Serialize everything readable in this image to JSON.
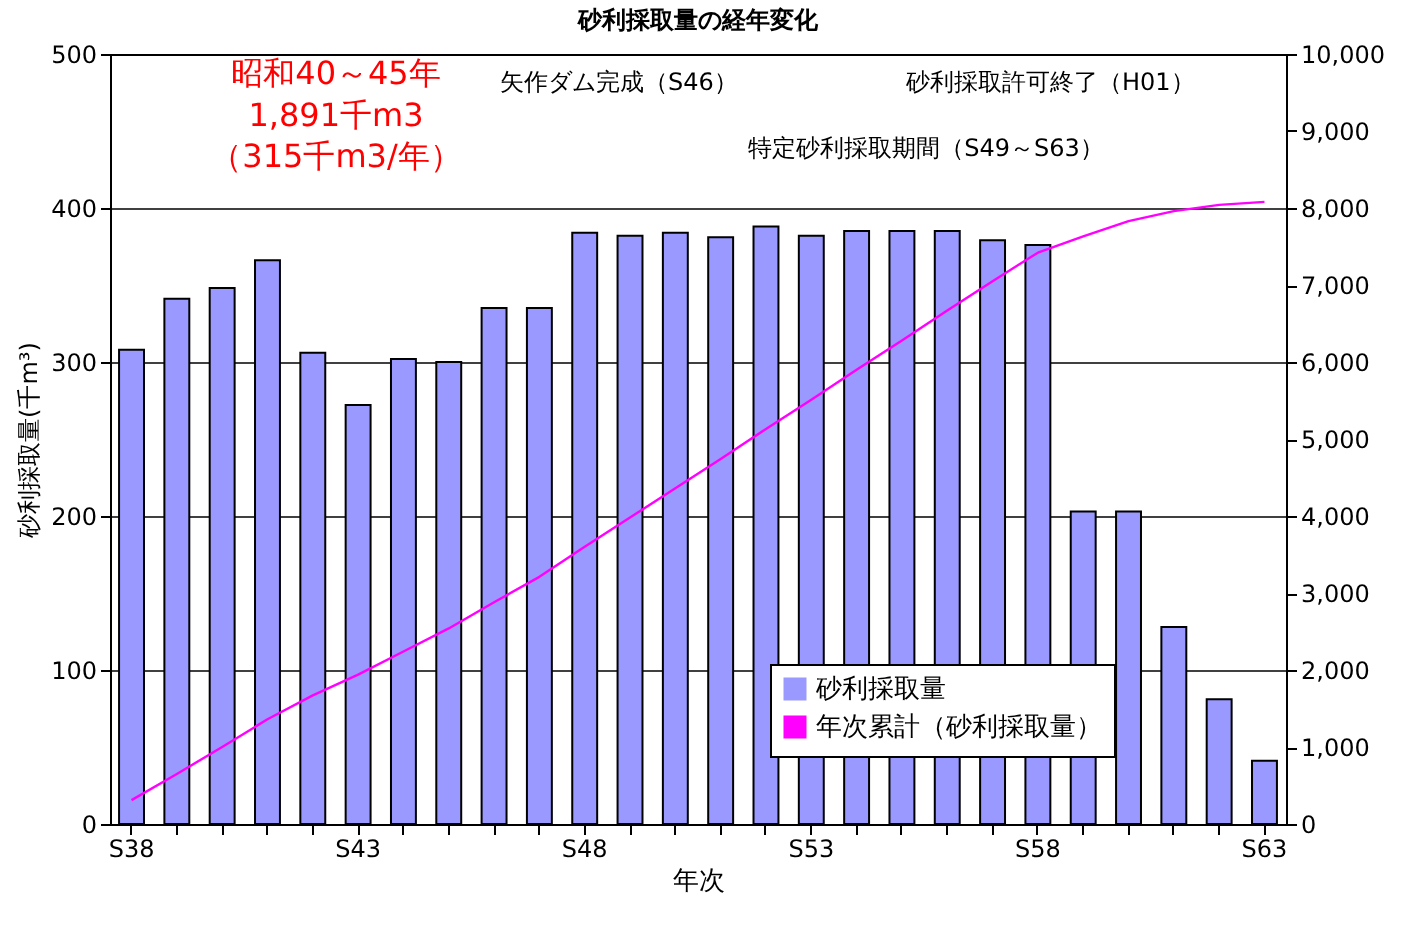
{
  "chart_data": {
    "type": "bar",
    "title": "砂利採取量の経年変化",
    "xlabel": "年次",
    "ylabel": "砂利採取量(千m³)",
    "categories": [
      "S38",
      null,
      null,
      null,
      null,
      "S43",
      null,
      null,
      null,
      null,
      "S48",
      null,
      null,
      null,
      null,
      "S53",
      null,
      null,
      null,
      null,
      "S58",
      null,
      null,
      null,
      null,
      "S63"
    ],
    "series": [
      {
        "name": "砂利採取量",
        "color": "#9999ff",
        "values": [
          308,
          341,
          348,
          366,
          306,
          272,
          302,
          300,
          335,
          335,
          384,
          382,
          384,
          381,
          388,
          382,
          385,
          385,
          385,
          379,
          376,
          203,
          203,
          128,
          81,
          41
        ]
      },
      {
        "name": "年次累計（砂利採取量）",
        "type": "line",
        "axis": "y2",
        "color": "#ff00ff",
        "values": [
          310,
          650,
          1000,
          1360,
          1670,
          1940,
          2240,
          2540,
          2880,
          3210,
          3600,
          3980,
          4360,
          4740,
          5130,
          5510,
          5900,
          6280,
          6670,
          7050,
          7420,
          7630,
          7830,
          7960,
          8040,
          8080
        ]
      }
    ],
    "ylim": [
      0,
      500
    ],
    "yticks": [
      0,
      100,
      200,
      300,
      400,
      500
    ],
    "y2lim": [
      0,
      10000
    ],
    "y2ticks": [
      0,
      {
        "value": 1000,
        "label": "1,000"
      },
      {
        "value": 2000,
        "label": "2,000"
      },
      {
        "value": 3000,
        "label": "3,000"
      },
      {
        "value": 4000,
        "label": "4,000"
      },
      {
        "value": 5000,
        "label": "5,000"
      },
      {
        "value": 6000,
        "label": "6,000"
      },
      {
        "value": 7000,
        "label": "7,000"
      },
      {
        "value": 8000,
        "label": "8,000"
      },
      {
        "value": 9000,
        "label": "9,000"
      },
      {
        "value": 10000,
        "label": "10,000"
      }
    ],
    "grid": "y",
    "legend": "bottom right",
    "marker": "none",
    "annotations": [
      "昭和40～45年\n1,891千m3\n（315千m3/年）",
      "矢作ダム完成（S46）",
      "特定砂利採取期間（S49～S63）",
      "砂利採取許可終了（H01）"
    ]
  }
}
